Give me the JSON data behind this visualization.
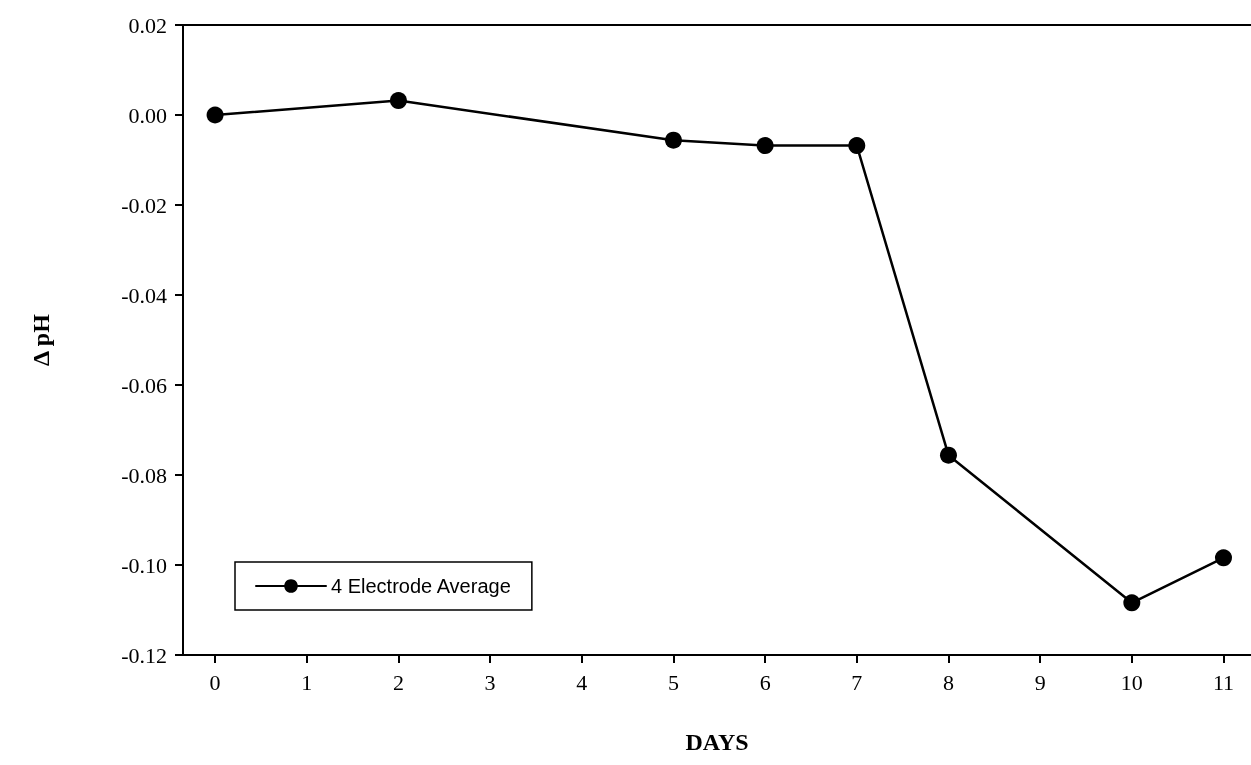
{
  "chart_data": {
    "type": "line",
    "xlabel": "DAYS",
    "ylabel": "Δ pH",
    "x": [
      0,
      2,
      5,
      6,
      7,
      8,
      10,
      11
    ],
    "series": [
      {
        "name": "4 Electrode Average",
        "color": "#000000",
        "values": [
          0.0,
          0.0032,
          -0.0056,
          -0.0068,
          -0.0068,
          -0.0756,
          -0.1084,
          -0.0984
        ]
      }
    ],
    "xlim": [
      -0.35,
      11.3
    ],
    "xticks": [
      0,
      1,
      2,
      3,
      4,
      5,
      6,
      7,
      8,
      9,
      10,
      11
    ],
    "ylim": [
      -0.12,
      0.02
    ],
    "yticks": [
      {
        "value": -0.12,
        "label": "-0.12"
      },
      {
        "value": -0.1,
        "label": "-0.10"
      },
      {
        "value": -0.08,
        "label": "-0.08"
      },
      {
        "value": -0.06,
        "label": "-0.06"
      },
      {
        "value": -0.04,
        "label": "-0.04"
      },
      {
        "value": -0.02,
        "label": "-0.02"
      },
      {
        "value": 0,
        "label": "0.00"
      },
      {
        "value": 0.02,
        "label": "0.02"
      }
    ],
    "grid": false,
    "legend": "bottom left",
    "marker": "circle",
    "line_style": "solid"
  }
}
